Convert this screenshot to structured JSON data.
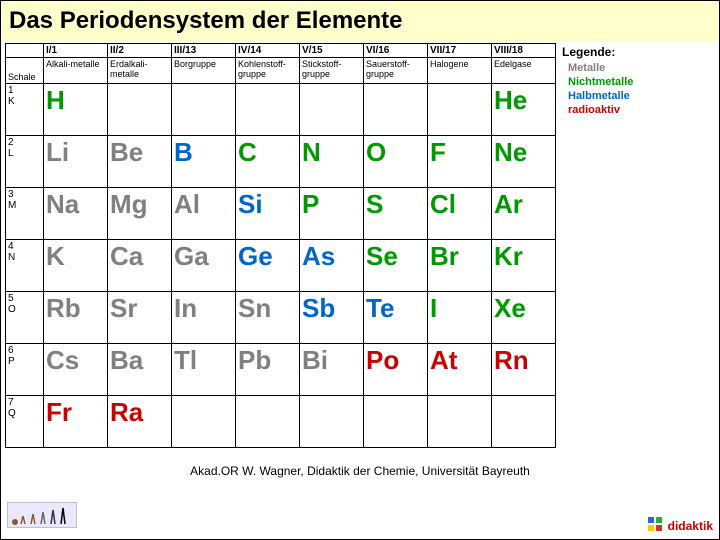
{
  "title": "Das Periodensystem der Elemente",
  "colors": {
    "metal": "#808080",
    "nonmetal": "#009900",
    "halfmetal": "#0066cc",
    "radioactive": "#cc0000",
    "title_bg": "#ffffcc"
  },
  "schale_label": "Schale",
  "groups": [
    {
      "top": "I/1",
      "sub": "Alkali-metalle"
    },
    {
      "top": "II/2",
      "sub": "Erdalkali-metalle"
    },
    {
      "top": "III/13",
      "sub": "Borgruppe"
    },
    {
      "top": "IV/14",
      "sub": "Kohlenstoff-gruppe"
    },
    {
      "top": "V/15",
      "sub": "Stickstoff-gruppe"
    },
    {
      "top": "VI/16",
      "sub": "Sauerstoff-gruppe"
    },
    {
      "top": "VII/17",
      "sub": "Halogene"
    },
    {
      "top": "VIII/18",
      "sub": "Edelgase"
    }
  ],
  "shells": [
    {
      "n": "1",
      "l": "K"
    },
    {
      "n": "2",
      "l": "L"
    },
    {
      "n": "3",
      "l": "M"
    },
    {
      "n": "4",
      "l": "N"
    },
    {
      "n": "5",
      "l": "O"
    },
    {
      "n": "6",
      "l": "P"
    },
    {
      "n": "7",
      "l": "Q"
    }
  ],
  "rows": [
    [
      {
        "sym": "H",
        "cls": "nonmetal"
      },
      null,
      null,
      null,
      null,
      null,
      null,
      {
        "sym": "He",
        "cls": "nonmetal"
      }
    ],
    [
      {
        "sym": "Li",
        "cls": "metal"
      },
      {
        "sym": "Be",
        "cls": "metal"
      },
      {
        "sym": "B",
        "cls": "halfmetal"
      },
      {
        "sym": "C",
        "cls": "nonmetal"
      },
      {
        "sym": "N",
        "cls": "nonmetal"
      },
      {
        "sym": "O",
        "cls": "nonmetal"
      },
      {
        "sym": "F",
        "cls": "nonmetal"
      },
      {
        "sym": "Ne",
        "cls": "nonmetal"
      }
    ],
    [
      {
        "sym": "Na",
        "cls": "metal"
      },
      {
        "sym": "Mg",
        "cls": "metal"
      },
      {
        "sym": "Al",
        "cls": "metal"
      },
      {
        "sym": "Si",
        "cls": "halfmetal"
      },
      {
        "sym": "P",
        "cls": "nonmetal"
      },
      {
        "sym": "S",
        "cls": "nonmetal"
      },
      {
        "sym": "Cl",
        "cls": "nonmetal"
      },
      {
        "sym": "Ar",
        "cls": "nonmetal"
      }
    ],
    [
      {
        "sym": "K",
        "cls": "metal"
      },
      {
        "sym": "Ca",
        "cls": "metal"
      },
      {
        "sym": "Ga",
        "cls": "metal"
      },
      {
        "sym": "Ge",
        "cls": "halfmetal"
      },
      {
        "sym": "As",
        "cls": "halfmetal"
      },
      {
        "sym": "Se",
        "cls": "nonmetal"
      },
      {
        "sym": "Br",
        "cls": "nonmetal"
      },
      {
        "sym": "Kr",
        "cls": "nonmetal"
      }
    ],
    [
      {
        "sym": "Rb",
        "cls": "metal"
      },
      {
        "sym": "Sr",
        "cls": "metal"
      },
      {
        "sym": "In",
        "cls": "metal"
      },
      {
        "sym": "Sn",
        "cls": "metal"
      },
      {
        "sym": "Sb",
        "cls": "halfmetal"
      },
      {
        "sym": "Te",
        "cls": "halfmetal"
      },
      {
        "sym": "I",
        "cls": "nonmetal"
      },
      {
        "sym": "Xe",
        "cls": "nonmetal"
      }
    ],
    [
      {
        "sym": "Cs",
        "cls": "metal"
      },
      {
        "sym": "Ba",
        "cls": "metal"
      },
      {
        "sym": "Tl",
        "cls": "metal"
      },
      {
        "sym": "Pb",
        "cls": "metal"
      },
      {
        "sym": "Bi",
        "cls": "metal"
      },
      {
        "sym": "Po",
        "cls": "radioactive"
      },
      {
        "sym": "At",
        "cls": "radioactive"
      },
      {
        "sym": "Rn",
        "cls": "radioactive"
      }
    ],
    [
      {
        "sym": "Fr",
        "cls": "radioactive"
      },
      {
        "sym": "Ra",
        "cls": "radioactive"
      },
      null,
      null,
      null,
      null,
      null,
      null
    ]
  ],
  "legend": {
    "title": "Legende:",
    "items": [
      {
        "label": "Metalle",
        "cls": "metal"
      },
      {
        "label": "Nichtmetalle",
        "cls": "nonmetal"
      },
      {
        "label": "Halbmetalle",
        "cls": "halfmetal"
      },
      {
        "label": "radioaktiv",
        "cls": "radioactive"
      }
    ]
  },
  "footer": "Akad.OR W. Wagner, Didaktik der Chemie, Universität Bayreuth",
  "logo_right": "didaktik"
}
